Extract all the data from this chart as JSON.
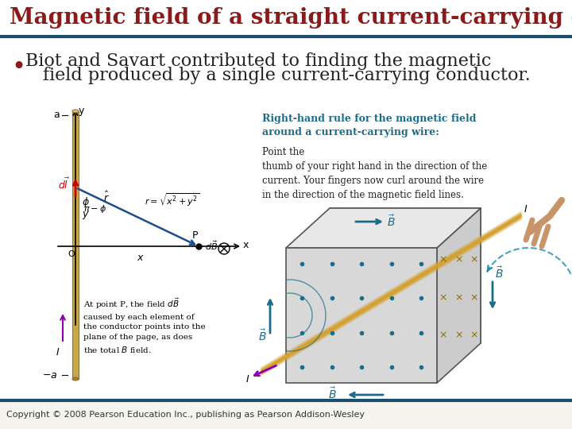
{
  "title": "Magnetic field of a straight current-carrying conductor",
  "title_color": "#8B1A1A",
  "title_bar_color": "#1C4E6B",
  "title_fontsize": 20,
  "bullet_line1": "Biot and Savart contributed to finding the magnetic",
  "bullet_line2": "field produced by a single current-carrying conductor.",
  "bullet_color": "#222222",
  "bullet_dot_color": "#8B1A1A",
  "bullet_fontsize": 16,
  "body_bg_color": "#F5F5EE",
  "footer_text": "Copyright © 2008 Pearson Education Inc., publishing as Pearson Addison-Wesley",
  "footer_color": "#333333",
  "footer_fontsize": 8,
  "rhr_title": "Right-hand rule for the magnetic field\naround a current-carrying wire:",
  "rhr_body": "Point the\nthumb of your right hand in the direction of the\ncurrent. Your fingers now curl around the wire\nin the direction of the magnetic field lines.",
  "rhr_title_color": "#1C6B8A",
  "rhr_body_color": "#222222",
  "rhr_fontsize_title": 9,
  "rhr_fontsize_body": 8.5,
  "caption_text": "At point P, the field dÂB\ncaused by each element of\nthe conductor points into the\nplane of the page, as does\nthe total B field.",
  "wire_color": "#C8A84B",
  "B_arrow_color": "#1C6B8A",
  "I_arrow_color": "#8B00AA",
  "dot_color": "#1C6B8A",
  "cross_color": "#8B6B00"
}
